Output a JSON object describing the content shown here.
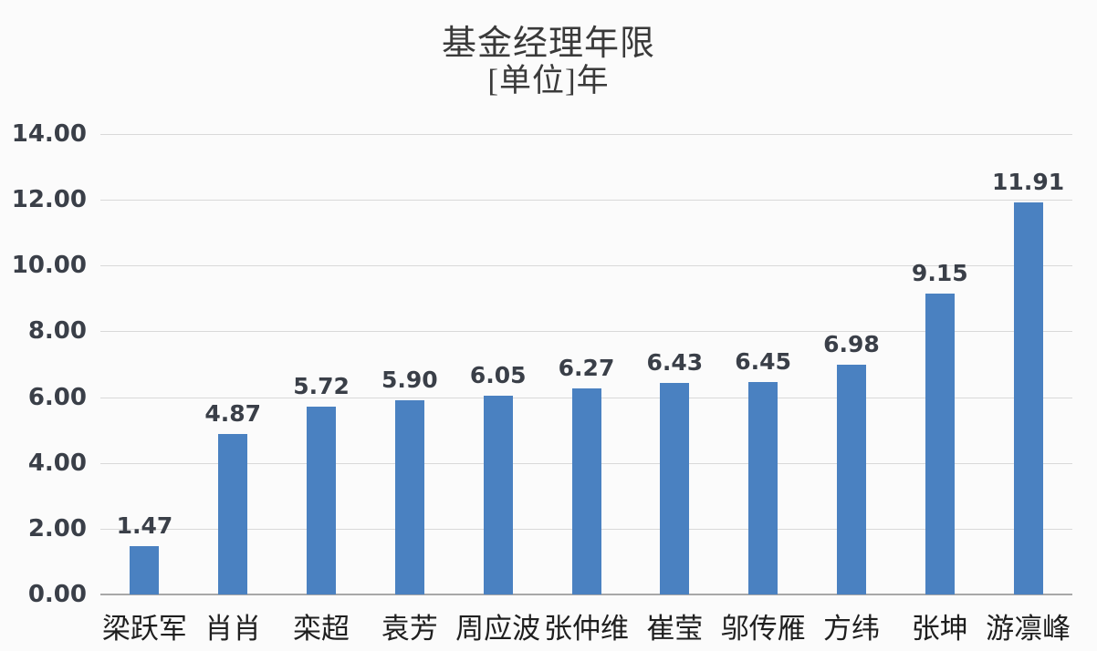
{
  "chart_data": {
    "type": "bar",
    "title": "基金经理年限",
    "subtitle": "[单位]年",
    "categories": [
      "梁跃军",
      "肖肖",
      "栾超",
      "袁芳",
      "周应波",
      "张仲维",
      "崔莹",
      "邬传雁",
      "方纬",
      "张坤",
      "游凛峰"
    ],
    "values": [
      1.47,
      4.87,
      5.72,
      5.9,
      6.05,
      6.27,
      6.43,
      6.45,
      6.98,
      9.15,
      11.91
    ],
    "data_labels": [
      "1.47",
      "4.87",
      "5.72",
      "5.90",
      "6.05",
      "6.27",
      "6.43",
      "6.45",
      "6.98",
      "9.15",
      "11.91"
    ],
    "xlabel": "",
    "ylabel": "",
    "ylim": [
      0,
      14
    ],
    "yticks": [
      0,
      2,
      4,
      6,
      8,
      10,
      12,
      14
    ],
    "ytick_labels": [
      "0.00",
      "2.00",
      "4.00",
      "6.00",
      "8.00",
      "10.00",
      "12.00",
      "14.00"
    ],
    "grid": true,
    "legend": false
  },
  "colors": {
    "background": "#fbfbfb",
    "bar": "#4a81c1",
    "gridline": "#d9d9d9",
    "axis_line": "#a8a8a8",
    "number_text": "#3a3f48",
    "title_text": "#3a3a3a",
    "category_text": "#1f1f1f"
  }
}
